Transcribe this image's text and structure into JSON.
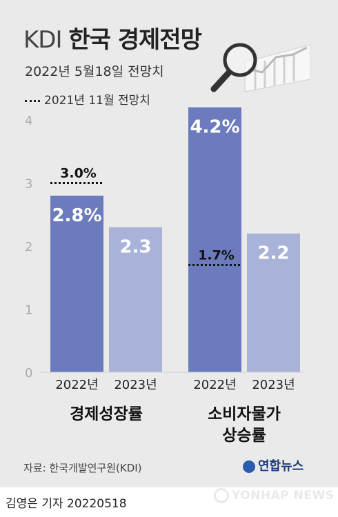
{
  "header": {
    "title_prefix": "KDI",
    "title_main": "한국 경제전망",
    "subtitle": "2022년 5월18일 전망치",
    "legend_label": "2021년 11월 전망치"
  },
  "chart_data": {
    "type": "bar",
    "groups": [
      {
        "label": "경제성장률",
        "bars": [
          {
            "category": "2022년",
            "value": 2.8,
            "label": "2.8%",
            "color": "#6b7bbd",
            "prior_value": 3.0,
            "prior_label": "3.0%"
          },
          {
            "category": "2023년",
            "value": 2.3,
            "label": "2.3",
            "color": "#a9b3d8"
          }
        ]
      },
      {
        "label_lines": [
          "소비자물가",
          "상승률"
        ],
        "bars": [
          {
            "category": "2022년",
            "value": 4.2,
            "label": "4.2%",
            "color": "#6b7bbd",
            "prior_value": 1.7,
            "prior_label": "1.7%"
          },
          {
            "category": "2023년",
            "value": 2.2,
            "label": "2.2",
            "color": "#a9b3d8"
          }
        ]
      }
    ],
    "y_ticks": [
      "0",
      "1",
      "2",
      "3",
      "4"
    ],
    "ylim": [
      0,
      4.2
    ],
    "grid": false,
    "legend_position": "top-left"
  },
  "footer": {
    "source": "자료: 한국개발연구원(KDI)",
    "logo_text": "연합뉴스",
    "reporter": "김영은 기자  20220518",
    "watermark": "YONHAP NEWS"
  },
  "colors": {
    "panel_bg": "#eaeaea",
    "bar_2022": "#6b7bbd",
    "bar_2023": "#a9b3d8"
  }
}
